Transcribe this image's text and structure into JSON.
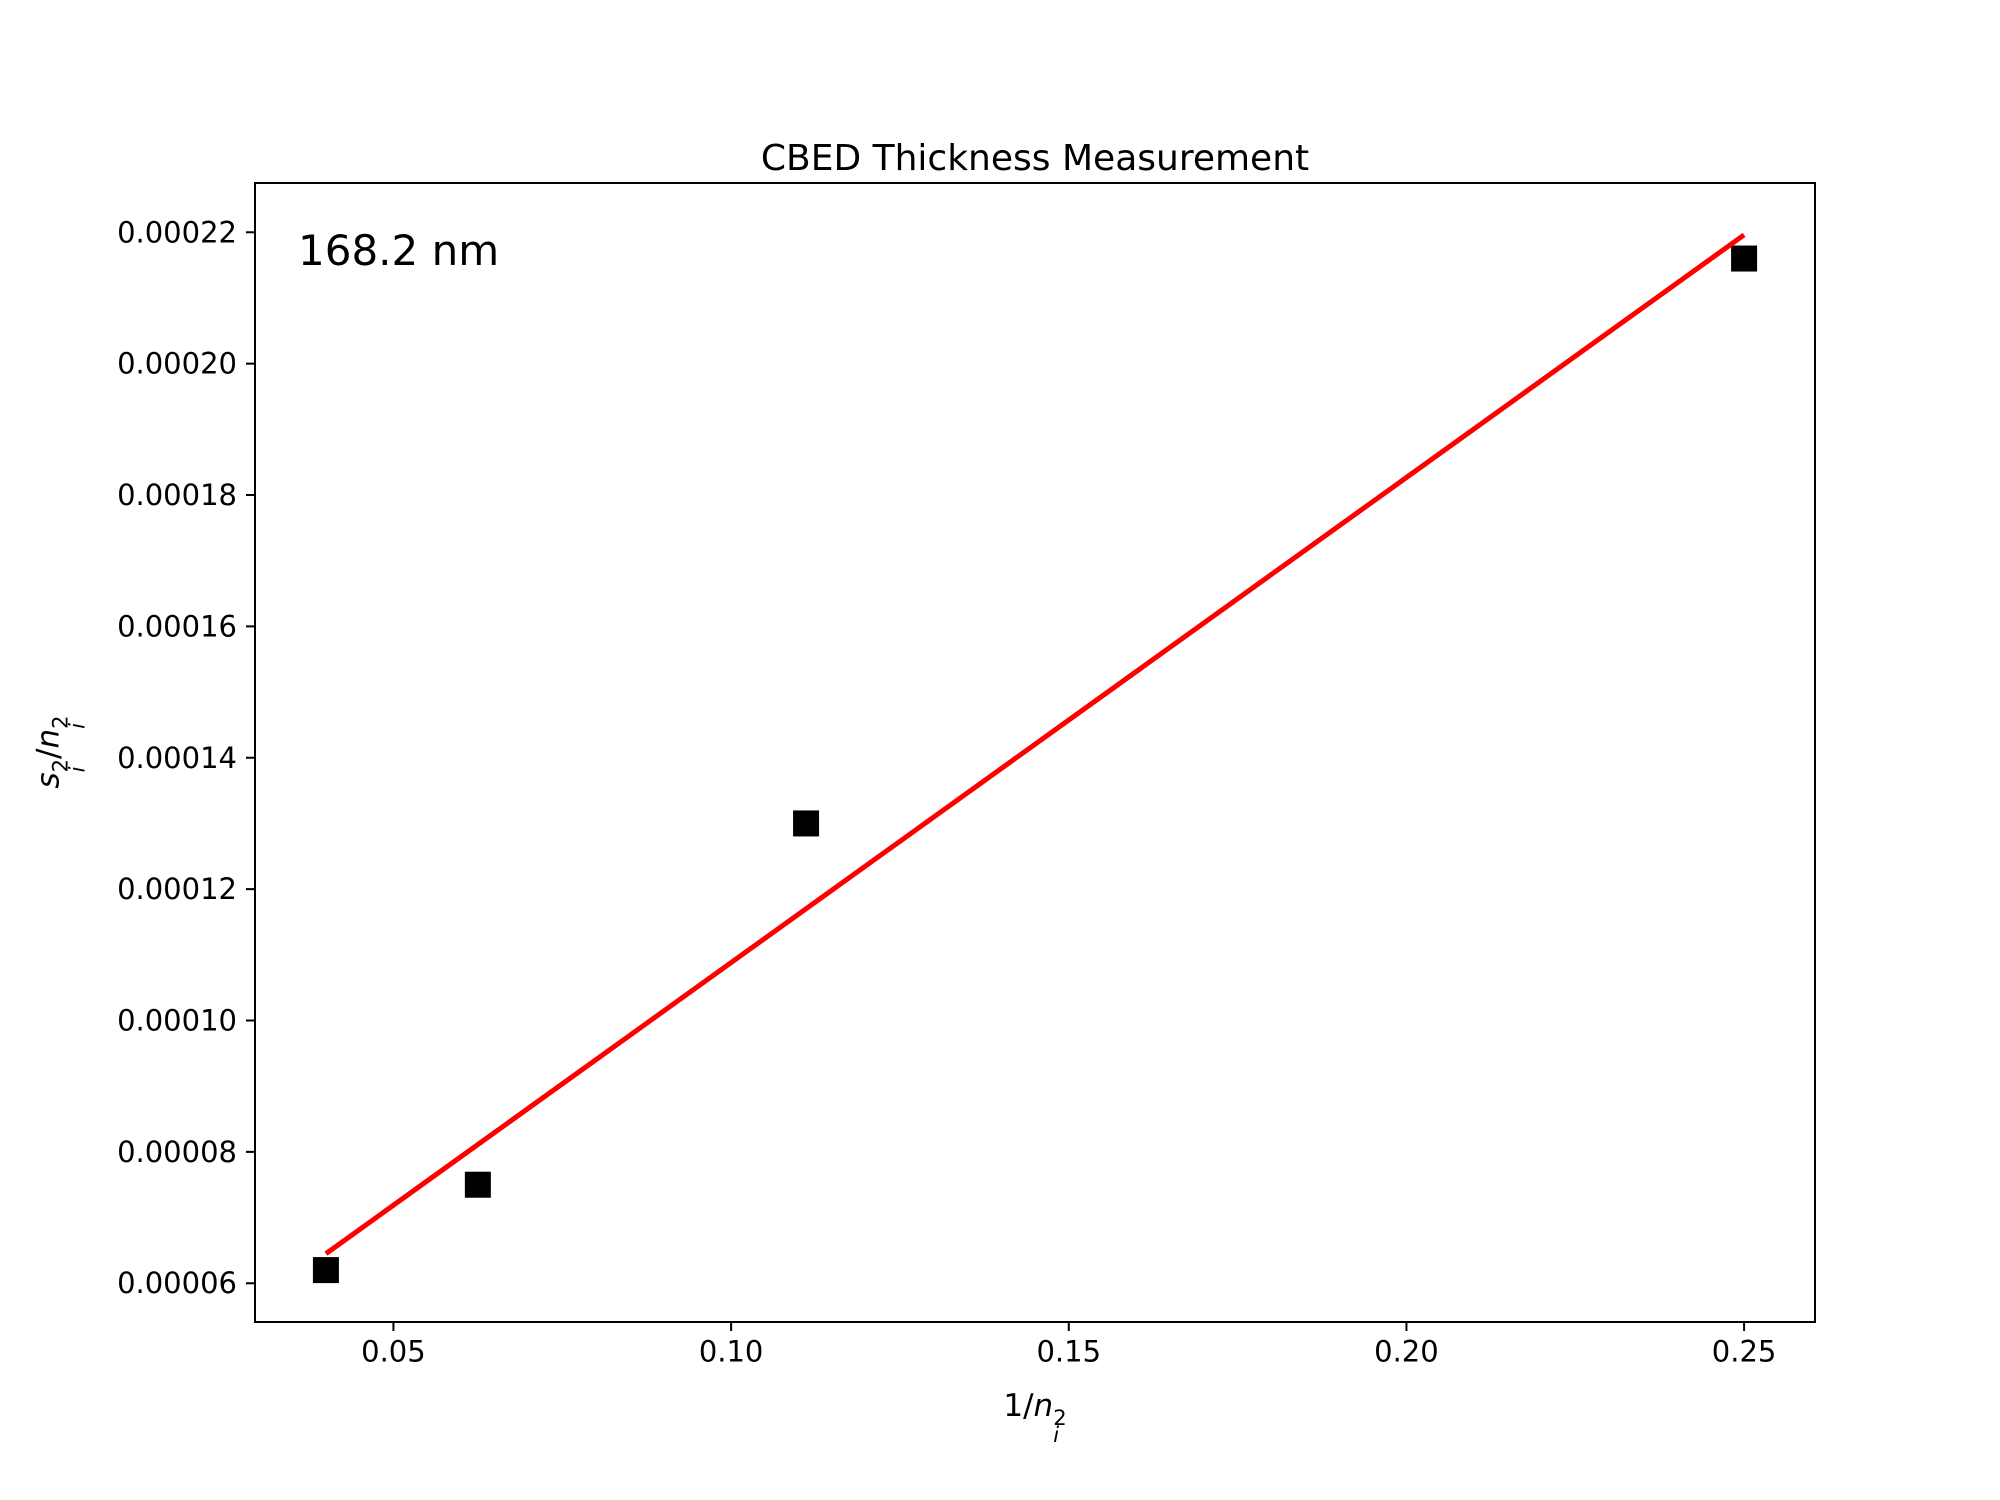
{
  "figure": {
    "background": "#ffffff"
  },
  "chart_data": {
    "type": "scatter",
    "title": "CBED Thickness Measurement",
    "xlabel": "1/n_i^2",
    "ylabel": "s_i^2/n_i^2",
    "annotation": "168.2 nm",
    "points": {
      "x": [
        0.04,
        0.0625,
        0.1111,
        0.25
      ],
      "y": [
        6.2e-05,
        7.5e-05,
        0.00013,
        0.000216
      ],
      "marker": "square",
      "color": "#000000",
      "size": 26
    },
    "fit_line": {
      "x": [
        0.04,
        0.25
      ],
      "y": [
        6.45e-05,
        0.0002196
      ],
      "color": "#ff0000",
      "width": 5
    },
    "xlim": [
      0.0295,
      0.2605
    ],
    "ylim": [
      5.41e-05,
      0.0002275
    ],
    "xticks": {
      "values": [
        0.05,
        0.1,
        0.15,
        0.2,
        0.25
      ],
      "labels": [
        "0.05",
        "0.10",
        "0.15",
        "0.20",
        "0.25"
      ]
    },
    "yticks": {
      "values": [
        6e-05,
        8e-05,
        0.0001,
        0.00012,
        0.00014,
        0.00016,
        0.00018,
        0.0002,
        0.00022
      ],
      "labels": [
        "0.00006",
        "0.00008",
        "0.00010",
        "0.00012",
        "0.00014",
        "0.00016",
        "0.00018",
        "0.00020",
        "0.00022"
      ]
    },
    "grid": false,
    "legend": null,
    "axis_color": "#000000"
  }
}
